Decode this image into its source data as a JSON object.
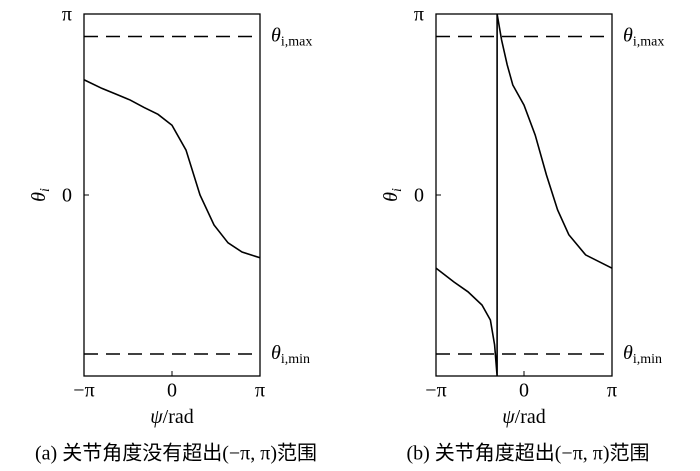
{
  "chart_data": [
    {
      "type": "line",
      "caption": "(a) 关节角度没有超出(−π, π)范围",
      "xlabel": "ψ",
      "xlabel_unit": "/rad",
      "ylabel": "θ",
      "ylabel_sub": "i",
      "x": [
        -3.1416,
        -2.5,
        -2.0,
        -1.5,
        -1.0,
        -0.5,
        0,
        0.5,
        1.0,
        1.5,
        2.0,
        2.5,
        3.1416
      ],
      "values": [
        2.0,
        1.85,
        1.75,
        1.65,
        1.52,
        1.4,
        1.21,
        0.78,
        0.0,
        -0.52,
        -0.83,
        -0.99,
        -1.09
      ],
      "color": "#000000",
      "xlim": [
        -3.1416,
        3.1416
      ],
      "ylim": [
        -3.1416,
        3.1416
      ],
      "xticks": [
        {
          "value": -3.1416,
          "label": "−π"
        },
        0,
        {
          "value": 3.1416,
          "label": "π"
        }
      ],
      "yticks": [
        0,
        {
          "value": 3.1416,
          "label": "π"
        }
      ],
      "thresholds": [
        {
          "value": 2.75,
          "label": "θ",
          "sub": "i,max"
        },
        {
          "value": -2.76,
          "label": "θ",
          "sub": "i,min"
        }
      ]
    },
    {
      "type": "line",
      "caption": "(b) 关节角度超出(−π, π)范围",
      "xlabel": "ψ",
      "xlabel_unit": "/rad",
      "ylabel": "θ",
      "ylabel_sub": "i",
      "x": [
        -3.1416,
        -2.5,
        -2.0,
        -1.5,
        -1.2,
        -1.05,
        -0.96,
        -0.96,
        -0.8,
        -0.6,
        -0.4,
        0,
        0.4,
        0.8,
        1.2,
        1.6,
        2.2,
        3.1416
      ],
      "values": [
        -1.27,
        -1.51,
        -1.68,
        -1.91,
        -2.17,
        -2.6,
        -3.1416,
        3.1416,
        2.69,
        2.26,
        1.91,
        1.56,
        1.04,
        0.35,
        -0.26,
        -0.69,
        -1.04,
        -1.27
      ],
      "color": "#000000",
      "xlim": [
        -3.1416,
        3.1416
      ],
      "ylim": [
        -3.1416,
        3.1416
      ],
      "xticks": [
        {
          "value": -3.1416,
          "label": "−π"
        },
        0,
        {
          "value": 3.1416,
          "label": "π"
        }
      ],
      "yticks": [
        0,
        {
          "value": 3.1416,
          "label": "π"
        }
      ],
      "thresholds": [
        {
          "value": 2.75,
          "label": "θ",
          "sub": "i,max"
        },
        {
          "value": -2.76,
          "label": "θ",
          "sub": "i,min"
        }
      ]
    }
  ]
}
